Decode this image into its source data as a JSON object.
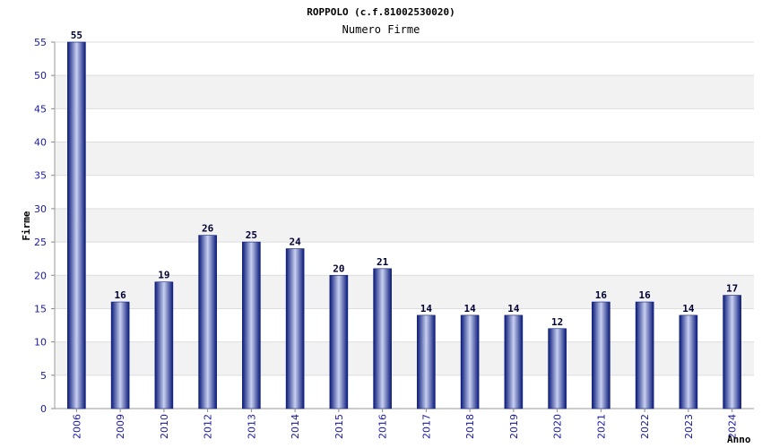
{
  "chart_data": {
    "type": "bar",
    "title": "ROPPOLO (c.f.81002530020)",
    "subtitle": "Numero Firme",
    "xlabel": "Anno",
    "ylabel": "Firme",
    "categories": [
      "2006",
      "2009",
      "2010",
      "2012",
      "2013",
      "2014",
      "2015",
      "2016",
      "2017",
      "2018",
      "2019",
      "2020",
      "2021",
      "2022",
      "2023",
      "2024"
    ],
    "values": [
      55,
      16,
      19,
      26,
      25,
      24,
      20,
      21,
      14,
      14,
      14,
      12,
      16,
      16,
      14,
      17
    ],
    "ylim": [
      0,
      55
    ],
    "yticks": [
      0,
      5,
      10,
      15,
      20,
      25,
      30,
      35,
      40,
      45,
      50,
      55
    ],
    "grid": true,
    "data_labels": true,
    "colors": {
      "bar_dark": "#0a1a7a",
      "bar_light": "#c8d0f0",
      "band": "#f2f2f2",
      "tick_text": "#1a1aa0"
    }
  }
}
